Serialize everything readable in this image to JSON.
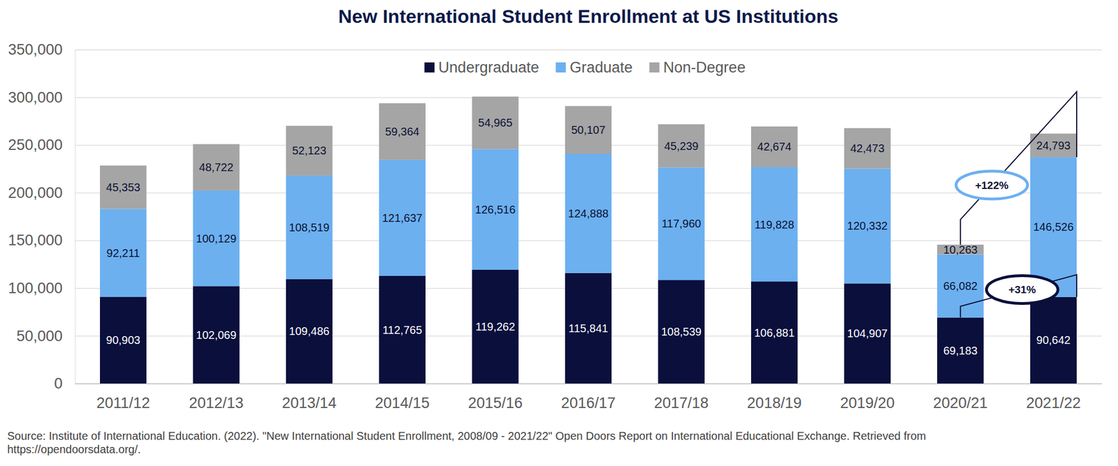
{
  "chart_data": {
    "type": "bar",
    "title": "New International Student Enrollment at US Institutions",
    "categories": [
      "2011/12",
      "2012/13",
      "2013/14",
      "2014/15",
      "2015/16",
      "2016/17",
      "2017/18",
      "2018/19",
      "2019/20",
      "2020/21",
      "2021/22"
    ],
    "series": [
      {
        "name": "Undergraduate",
        "color": "#0a0f3c",
        "values": [
          90903,
          102069,
          109486,
          112765,
          119262,
          115841,
          108539,
          106881,
          104907,
          69183,
          90642
        ],
        "value_labels": [
          "90,903",
          "102,069",
          "109,486",
          "112,765",
          "119,262",
          "115,841",
          "108,539",
          "106,881",
          "104,907",
          "69,183",
          "90,642"
        ]
      },
      {
        "name": "Graduate",
        "color": "#6cb0f0",
        "values": [
          92211,
          100129,
          108519,
          121637,
          126516,
          124888,
          117960,
          119828,
          120332,
          66082,
          146526
        ],
        "value_labels": [
          "92,211",
          "100,129",
          "108,519",
          "121,637",
          "126,516",
          "124,888",
          "117,960",
          "119,828",
          "120,332",
          "66,082",
          "146,526"
        ]
      },
      {
        "name": "Non-Degree",
        "color": "#a5a5a5",
        "values": [
          45353,
          48722,
          52123,
          59364,
          54965,
          50107,
          45239,
          42674,
          42473,
          10263,
          24793
        ],
        "value_labels": [
          "45,353",
          "48,722",
          "52,123",
          "59,364",
          "54,965",
          "50,107",
          "45,239",
          "42,674",
          "42,473",
          "10,263",
          "24,793"
        ]
      }
    ],
    "ylim": [
      0,
      350000
    ],
    "yticks": [
      0,
      {
        "value": 50000,
        "label": "50,000"
      },
      {
        "value": 100000,
        "label": "100,000"
      },
      {
        "value": 150000,
        "label": "150,000"
      },
      {
        "value": 200000,
        "label": "200,000"
      },
      {
        "value": 250000,
        "label": "250,000"
      },
      {
        "value": 300000,
        "label": "300,000"
      },
      {
        "value": 350000,
        "label": "350,000"
      }
    ],
    "grid": true,
    "stacked": true,
    "data_labels": true,
    "legend": "top",
    "annotations": [
      {
        "text": "+122%",
        "series": "Graduate",
        "from": "2020/21",
        "to": "2021/22"
      },
      {
        "text": "+31%",
        "series": "Undergraduate",
        "from": "2020/21",
        "to": "2021/22"
      }
    ],
    "source": [
      "Source: Institute of International Education. (2022). \"New International Student Enrollment, 2008/09 - 2021/22\" Open Doors Report on International Educational Exchange. Retrieved from",
      "https://opendoorsdata.org/."
    ]
  }
}
